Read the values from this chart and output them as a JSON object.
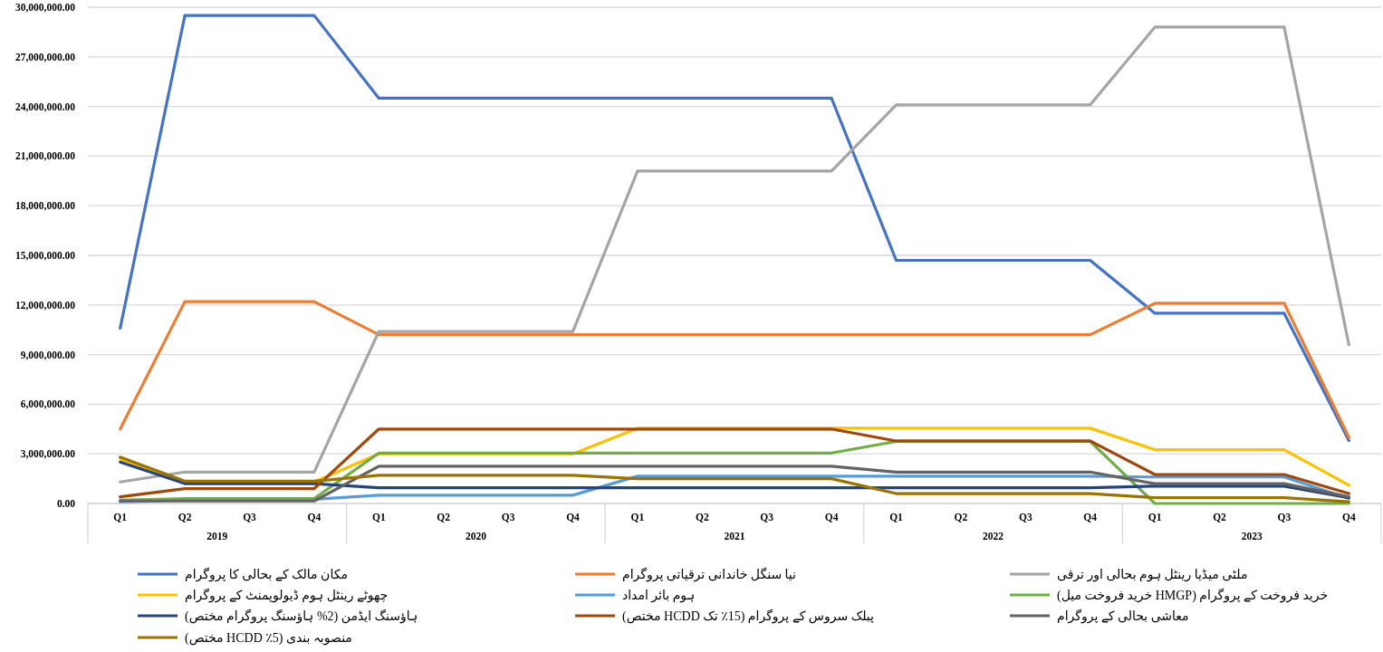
{
  "chart_data": {
    "type": "line",
    "categories": [
      "Q1",
      "Q2",
      "Q3",
      "Q4",
      "Q1",
      "Q2",
      "Q3",
      "Q4",
      "Q1",
      "Q2",
      "Q3",
      "Q4",
      "Q1",
      "Q2",
      "Q3",
      "Q4",
      "Q1",
      "Q2",
      "Q3",
      "Q4"
    ],
    "annotations": [
      "2019",
      "2020",
      "2021",
      "2022",
      "2023"
    ],
    "ylim": [
      0,
      30000000
    ],
    "yticks": [
      {
        "value": 0,
        "label": "0.00"
      },
      {
        "value": 3000000,
        "label": "3,000,000.00"
      },
      {
        "value": 6000000,
        "label": "6,000,000.00"
      },
      {
        "value": 9000000,
        "label": "9,000,000.00"
      },
      {
        "value": 12000000,
        "label": "12,000,000.00"
      },
      {
        "value": 15000000,
        "label": "15,000,000.00"
      },
      {
        "value": 18000000,
        "label": "18,000,000.00"
      },
      {
        "value": 21000000,
        "label": "21,000,000.00"
      },
      {
        "value": 24000000,
        "label": "24,000,000.00"
      },
      {
        "value": 27000000,
        "label": "27,000,000.00"
      },
      {
        "value": 30000000,
        "label": "30,000,000.00"
      }
    ],
    "grid": "y",
    "legend": "bottom",
    "marker": "none",
    "line_style": "solid",
    "series": [
      {
        "name": "مکان مالک کے بحالی کا پروگرام",
        "color": "#4472c4",
        "values": [
          10600000,
          29500000,
          29500000,
          29500000,
          24500000,
          24500000,
          24500000,
          24500000,
          24500000,
          24500000,
          24500000,
          24500000,
          14700000,
          14700000,
          14700000,
          14700000,
          11500000,
          11500000,
          11500000,
          3800000
        ]
      },
      {
        "name": "نیا سنگل خاندانی ترقیاتی پروگرام",
        "color": "#ed7d31",
        "values": [
          4500000,
          12200000,
          12200000,
          12200000,
          10200000,
          10200000,
          10200000,
          10200000,
          10200000,
          10200000,
          10200000,
          10200000,
          10200000,
          10200000,
          10200000,
          10200000,
          12100000,
          12100000,
          12100000,
          4000000
        ]
      },
      {
        "name": "ملٹی میڈیا رینٹل ہوم بحالی اور ترقی",
        "color": "#a5a5a5",
        "values": [
          1300000,
          1900000,
          1900000,
          1900000,
          10400000,
          10400000,
          10400000,
          10400000,
          20100000,
          20100000,
          20100000,
          20100000,
          24100000,
          24100000,
          24100000,
          24100000,
          28800000,
          28800000,
          28800000,
          9600000
        ]
      },
      {
        "name": "چھوٹے رینٹل ہوم ڈیولوپمنٹ کے پروگرام",
        "color": "#ffc000",
        "values": [
          2700000,
          1300000,
          1300000,
          1300000,
          3000000,
          3000000,
          3000000,
          3000000,
          4550000,
          4550000,
          4550000,
          4550000,
          4550000,
          4550000,
          4550000,
          4550000,
          3250000,
          3250000,
          3250000,
          1100000
        ]
      },
      {
        "name": "ہوم بائر امداد",
        "color": "#5b9bd5",
        "values": [
          100000,
          200000,
          200000,
          250000,
          500000,
          500000,
          500000,
          500000,
          1650000,
          1650000,
          1650000,
          1650000,
          1650000,
          1650000,
          1650000,
          1650000,
          1600000,
          1600000,
          1600000,
          300000
        ]
      },
      {
        "name": "خرید فروخت کے پروگرام (HMGP خرید فروخت میل)",
        "color": "#70ad47",
        "values": [
          200000,
          300000,
          300000,
          300000,
          3050000,
          3050000,
          3050000,
          3050000,
          3050000,
          3050000,
          3050000,
          3050000,
          3750000,
          3750000,
          3750000,
          3750000,
          0,
          0,
          0,
          0
        ]
      },
      {
        "name": "ہاؤسنگ ایڈمن (2% ہاؤسنگ پروگرام مختص)",
        "color": "#264478",
        "values": [
          2500000,
          1200000,
          1200000,
          1200000,
          950000,
          950000,
          950000,
          950000,
          950000,
          950000,
          950000,
          950000,
          950000,
          950000,
          950000,
          950000,
          1050000,
          1050000,
          1050000,
          350000
        ]
      },
      {
        "name": "پبلک سروس کے پروگرام (15٪ تک HCDD مختص)",
        "color": "#9e480e",
        "values": [
          400000,
          900000,
          900000,
          900000,
          4500000,
          4500000,
          4500000,
          4500000,
          4500000,
          4500000,
          4500000,
          4500000,
          3780000,
          3780000,
          3780000,
          3780000,
          1750000,
          1750000,
          1750000,
          600000
        ]
      },
      {
        "name": "معاشی بحالی کے پروگرام",
        "color": "#636363",
        "values": [
          150000,
          150000,
          150000,
          150000,
          2250000,
          2250000,
          2250000,
          2250000,
          2250000,
          2250000,
          2250000,
          2250000,
          1900000,
          1900000,
          1900000,
          1900000,
          1200000,
          1200000,
          1200000,
          400000
        ]
      },
      {
        "name": "منصوبہ بندی (5٪ HCDD مختص)",
        "color": "#997300",
        "values": [
          2800000,
          1350000,
          1350000,
          1350000,
          1700000,
          1700000,
          1700000,
          1700000,
          1500000,
          1500000,
          1500000,
          1500000,
          600000,
          600000,
          600000,
          600000,
          350000,
          350000,
          350000,
          100000
        ]
      }
    ]
  }
}
